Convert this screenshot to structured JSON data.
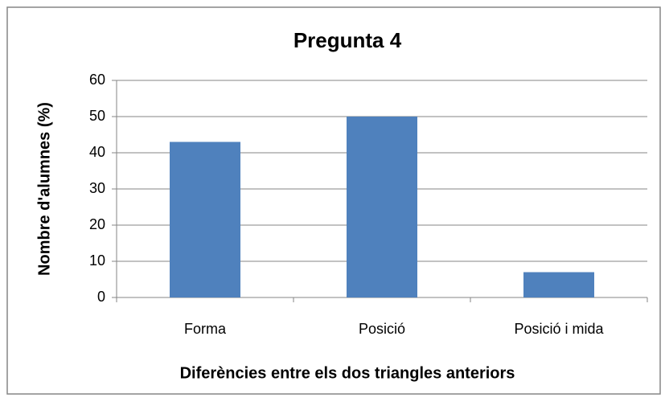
{
  "chart_data": {
    "type": "bar",
    "title": "Pregunta 4",
    "x_label": "Diferències entre els dos triangles anteriors",
    "y_label": "Nombre d'alumnes (%)",
    "categories": [
      "Forma",
      "Posició",
      "Posició i mida"
    ],
    "values": [
      43,
      50,
      7
    ],
    "color": "#4f81bd",
    "ylim": [
      0,
      60
    ],
    "yticks": [
      0,
      10,
      20,
      30,
      40,
      50,
      60
    ],
    "grid": true
  }
}
